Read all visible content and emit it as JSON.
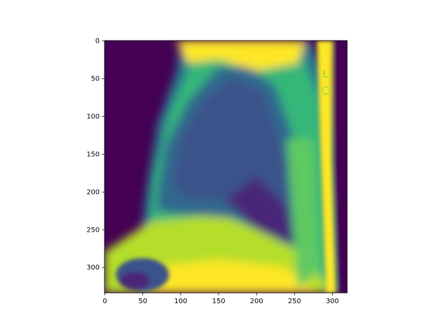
{
  "chart_data": {
    "type": "image",
    "colormap": "viridis",
    "xlim": [
      -0.5,
      319.5
    ],
    "ylim": [
      333.5,
      -0.5
    ],
    "xticks": [
      0,
      50,
      100,
      150,
      200,
      250,
      300
    ],
    "yticks": [
      0,
      50,
      100,
      150,
      200,
      250,
      300
    ]
  }
}
